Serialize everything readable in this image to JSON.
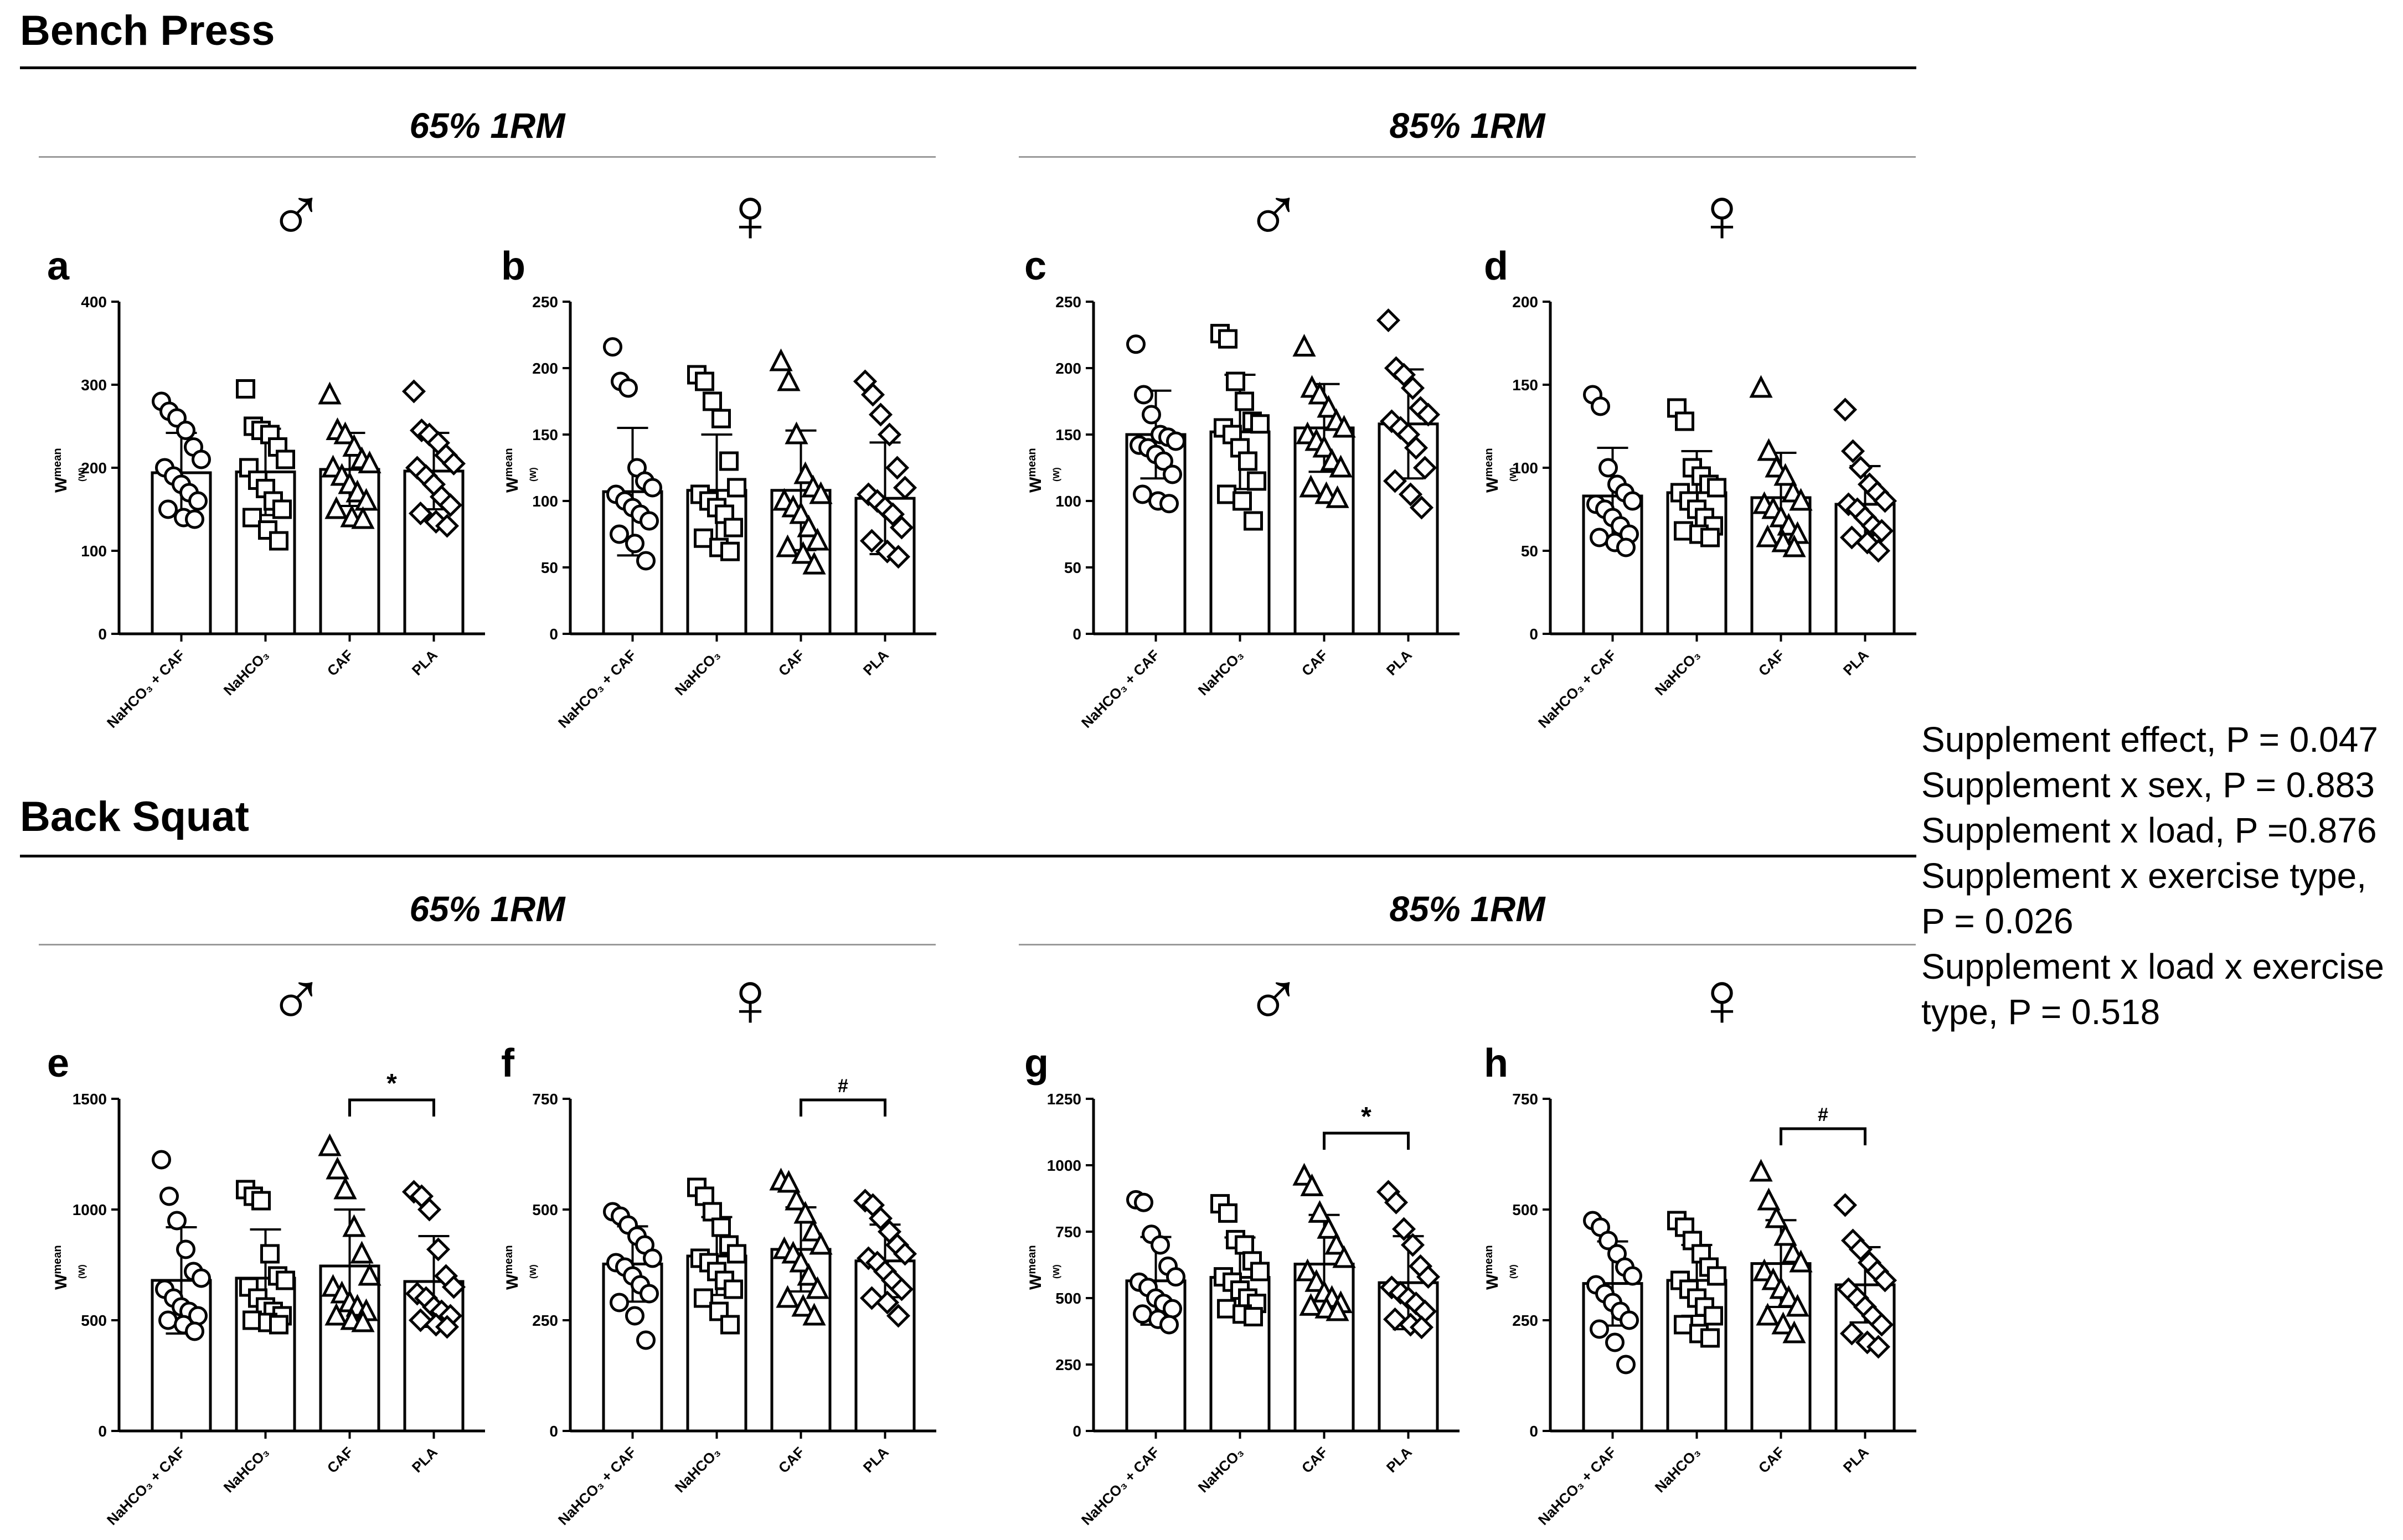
{
  "sections": [
    {
      "title": "Bench Press",
      "load_titles": [
        "65% 1RM",
        "85% 1RM"
      ]
    },
    {
      "title": "Back Squat",
      "load_titles": [
        "65% 1RM",
        "85% 1RM"
      ]
    }
  ],
  "sex_symbols": {
    "male": "♂",
    "female": "♀"
  },
  "ylabel": {
    "main": "W",
    "sub": "mean",
    "unit": "(W)"
  },
  "stats": [
    "Supplement effect, P = 0.047",
    "Supplement x sex, P = 0.883",
    "Supplement x load, P =0.876",
    "Supplement x exercise type, P = 0.026",
    "Supplement x load x exercise type, P = 0.518"
  ],
  "colors": {
    "bar_fill": "#ffffff",
    "stroke": "#000000",
    "rule": "#9a9a9a"
  },
  "chart_data": [
    {
      "panel": "a",
      "exercise": "Bench Press",
      "load": "65% 1RM",
      "sex": "male",
      "type": "bar",
      "categories": [
        "NaHCO₃ + CAF",
        "NaHCO₃",
        "CAF",
        "PLA"
      ],
      "markers": [
        "circle",
        "square",
        "triangle",
        "diamond"
      ],
      "ylim": [
        0,
        400
      ],
      "yticks": [
        0,
        100,
        200,
        300,
        400
      ],
      "means": [
        194,
        195,
        198,
        196
      ],
      "sd": [
        48,
        52,
        44,
        46
      ],
      "points": [
        [
          280,
          268,
          260,
          245,
          225,
          210,
          200,
          190,
          180,
          170,
          160,
          150,
          140,
          138
        ],
        [
          295,
          250,
          245,
          240,
          225,
          210,
          200,
          185,
          175,
          160,
          150,
          140,
          125,
          112
        ],
        [
          288,
          245,
          240,
          225,
          210,
          205,
          200,
          190,
          180,
          170,
          160,
          150,
          140,
          138
        ],
        [
          292,
          245,
          240,
          230,
          215,
          205,
          200,
          190,
          180,
          165,
          155,
          145,
          135,
          130
        ]
      ],
      "significance": null
    },
    {
      "panel": "b",
      "exercise": "Bench Press",
      "load": "65% 1RM",
      "sex": "female",
      "type": "bar",
      "categories": [
        "NaHCO₃ + CAF",
        "NaHCO₃",
        "CAF",
        "PLA"
      ],
      "markers": [
        "circle",
        "square",
        "triangle",
        "diamond"
      ],
      "ylim": [
        0,
        250
      ],
      "yticks": [
        0,
        50,
        100,
        150,
        200,
        250
      ],
      "means": [
        107,
        108,
        108,
        102
      ],
      "sd": [
        48,
        42,
        45,
        42
      ],
      "points": [
        [
          216,
          190,
          185,
          125,
          115,
          110,
          105,
          100,
          95,
          90,
          85,
          75,
          68,
          55
        ],
        [
          195,
          190,
          175,
          162,
          130,
          110,
          105,
          100,
          95,
          90,
          80,
          72,
          65,
          62
        ],
        [
          205,
          190,
          150,
          120,
          110,
          105,
          100,
          95,
          90,
          80,
          70,
          65,
          60,
          52
        ],
        [
          190,
          180,
          165,
          150,
          125,
          110,
          105,
          100,
          95,
          90,
          80,
          70,
          62,
          58
        ]
      ],
      "significance": null
    },
    {
      "panel": "c",
      "exercise": "Bench Press",
      "load": "85% 1RM",
      "sex": "male",
      "type": "bar",
      "categories": [
        "NaHCO₃ + CAF",
        "NaHCO₃",
        "CAF",
        "PLA"
      ],
      "markers": [
        "circle",
        "square",
        "triangle",
        "diamond"
      ],
      "ylim": [
        0,
        250
      ],
      "yticks": [
        0,
        50,
        100,
        150,
        200,
        250
      ],
      "means": [
        150,
        152,
        155,
        158
      ],
      "sd": [
        33,
        43,
        33,
        41
      ],
      "points": [
        [
          218,
          180,
          165,
          150,
          148,
          145,
          142,
          140,
          135,
          130,
          120,
          105,
          100,
          98
        ],
        [
          226,
          222,
          190,
          175,
          160,
          158,
          155,
          150,
          140,
          130,
          115,
          105,
          100,
          85
        ],
        [
          216,
          185,
          180,
          170,
          160,
          155,
          150,
          145,
          140,
          130,
          125,
          110,
          105,
          102
        ],
        [
          236,
          200,
          195,
          185,
          170,
          165,
          160,
          155,
          150,
          140,
          125,
          115,
          105,
          95
        ]
      ],
      "significance": null
    },
    {
      "panel": "d",
      "exercise": "Bench Press",
      "load": "85% 1RM",
      "sex": "female",
      "type": "bar",
      "categories": [
        "NaHCO₃ + CAF",
        "NaHCO₃",
        "CAF",
        "PLA"
      ],
      "markers": [
        "circle",
        "square",
        "triangle",
        "diamond"
      ],
      "ylim": [
        0,
        200
      ],
      "yticks": [
        0,
        50,
        100,
        150,
        200
      ],
      "means": [
        83,
        85,
        82,
        78
      ],
      "sd": [
        29,
        25,
        27,
        23
      ],
      "points": [
        [
          144,
          137,
          100,
          90,
          85,
          80,
          78,
          75,
          70,
          65,
          60,
          58,
          55,
          52
        ],
        [
          136,
          128,
          100,
          95,
          90,
          88,
          85,
          80,
          75,
          70,
          65,
          62,
          60,
          58
        ],
        [
          148,
          110,
          100,
          95,
          85,
          80,
          78,
          75,
          70,
          65,
          60,
          58,
          55,
          52
        ],
        [
          135,
          110,
          100,
          90,
          85,
          80,
          78,
          75,
          70,
          65,
          62,
          58,
          55,
          50
        ]
      ],
      "significance": null
    },
    {
      "panel": "e",
      "exercise": "Back Squat",
      "load": "65% 1RM",
      "sex": "male",
      "type": "bar",
      "categories": [
        "NaHCO₃ + CAF",
        "NaHCO₃",
        "CAF",
        "PLA"
      ],
      "markers": [
        "circle",
        "square",
        "triangle",
        "diamond"
      ],
      "ylim": [
        0,
        1500
      ],
      "yticks": [
        0,
        500,
        1000,
        1500
      ],
      "means": [
        680,
        690,
        745,
        675
      ],
      "sd": [
        240,
        220,
        255,
        205
      ],
      "points": [
        [
          1225,
          1060,
          950,
          820,
          720,
          690,
          640,
          600,
          560,
          540,
          520,
          500,
          480,
          450
        ],
        [
          1090,
          1060,
          1040,
          800,
          700,
          680,
          650,
          600,
          560,
          540,
          520,
          500,
          490,
          480
        ],
        [
          1285,
          1180,
          1090,
          920,
          800,
          700,
          650,
          620,
          580,
          560,
          540,
          520,
          500,
          490
        ],
        [
          1080,
          1060,
          1000,
          820,
          700,
          650,
          620,
          600,
          560,
          540,
          520,
          500,
          480,
          470
        ]
      ],
      "significance": {
        "from": 2,
        "to": 3,
        "symbol": "*",
        "value": 1500
      }
    },
    {
      "panel": "f",
      "exercise": "Back Squat",
      "load": "65% 1RM",
      "sex": "female",
      "type": "bar",
      "categories": [
        "NaHCO₃ + CAF",
        "NaHCO₃",
        "CAF",
        "PLA"
      ],
      "markers": [
        "circle",
        "square",
        "triangle",
        "diamond"
      ],
      "ylim": [
        0,
        750
      ],
      "yticks": [
        0,
        250,
        500,
        750
      ],
      "means": [
        377,
        395,
        410,
        384
      ],
      "sd": [
        85,
        88,
        95,
        82
      ],
      "points": [
        [
          495,
          485,
          465,
          440,
          420,
          390,
          380,
          370,
          350,
          330,
          310,
          290,
          260,
          205
        ],
        [
          550,
          530,
          495,
          460,
          420,
          400,
          390,
          380,
          360,
          340,
          320,
          300,
          270,
          240
        ],
        [
          565,
          560,
          520,
          490,
          450,
          420,
          410,
          400,
          380,
          350,
          320,
          300,
          280,
          260
        ],
        [
          520,
          510,
          480,
          450,
          420,
          400,
          390,
          380,
          360,
          340,
          320,
          300,
          290,
          260
        ]
      ],
      "significance": {
        "from": 2,
        "to": 3,
        "symbol": "#",
        "value": 750
      }
    },
    {
      "panel": "g",
      "exercise": "Back Squat",
      "load": "85% 1RM",
      "sex": "male",
      "type": "bar",
      "categories": [
        "NaHCO₃ + CAF",
        "NaHCO₃",
        "CAF",
        "PLA"
      ],
      "markers": [
        "circle",
        "square",
        "triangle",
        "diamond"
      ],
      "ylim": [
        0,
        1250
      ],
      "yticks": [
        0,
        250,
        500,
        750,
        1000,
        1250
      ],
      "means": [
        565,
        578,
        628,
        558
      ],
      "sd": [
        165,
        150,
        185,
        175
      ],
      "points": [
        [
          870,
          860,
          740,
          700,
          620,
          580,
          560,
          540,
          500,
          480,
          460,
          440,
          420,
          400
        ],
        [
          855,
          820,
          720,
          700,
          640,
          600,
          580,
          560,
          530,
          500,
          480,
          460,
          440,
          430
        ],
        [
          960,
          920,
          820,
          760,
          700,
          650,
          600,
          560,
          520,
          500,
          480,
          470,
          460,
          450
        ],
        [
          900,
          860,
          760,
          700,
          620,
          580,
          540,
          520,
          500,
          480,
          450,
          420,
          400,
          390
        ]
      ],
      "significance": {
        "from": 2,
        "to": 3,
        "symbol": "*",
        "value": 1125
      }
    },
    {
      "panel": "h",
      "exercise": "Back Squat",
      "load": "85% 1RM",
      "sex": "female",
      "type": "bar",
      "categories": [
        "NaHCO₃ + CAF",
        "NaHCO₃",
        "CAF",
        "PLA"
      ],
      "markers": [
        "circle",
        "square",
        "triangle",
        "diamond"
      ],
      "ylim": [
        0,
        750
      ],
      "yticks": [
        0,
        250,
        500,
        750
      ],
      "means": [
        333,
        340,
        378,
        330
      ],
      "sd": [
        95,
        80,
        98,
        85
      ],
      "points": [
        [
          475,
          460,
          430,
          400,
          370,
          350,
          330,
          310,
          290,
          270,
          250,
          230,
          200,
          150
        ],
        [
          475,
          460,
          430,
          400,
          370,
          350,
          340,
          320,
          300,
          280,
          260,
          240,
          220,
          210
        ],
        [
          585,
          520,
          480,
          440,
          400,
          380,
          360,
          340,
          320,
          300,
          280,
          260,
          240,
          220
        ],
        [
          510,
          430,
          410,
          380,
          360,
          340,
          320,
          300,
          280,
          260,
          240,
          220,
          200,
          190
        ]
      ],
      "significance": {
        "from": 2,
        "to": 3,
        "symbol": "#",
        "value": 685
      }
    }
  ]
}
